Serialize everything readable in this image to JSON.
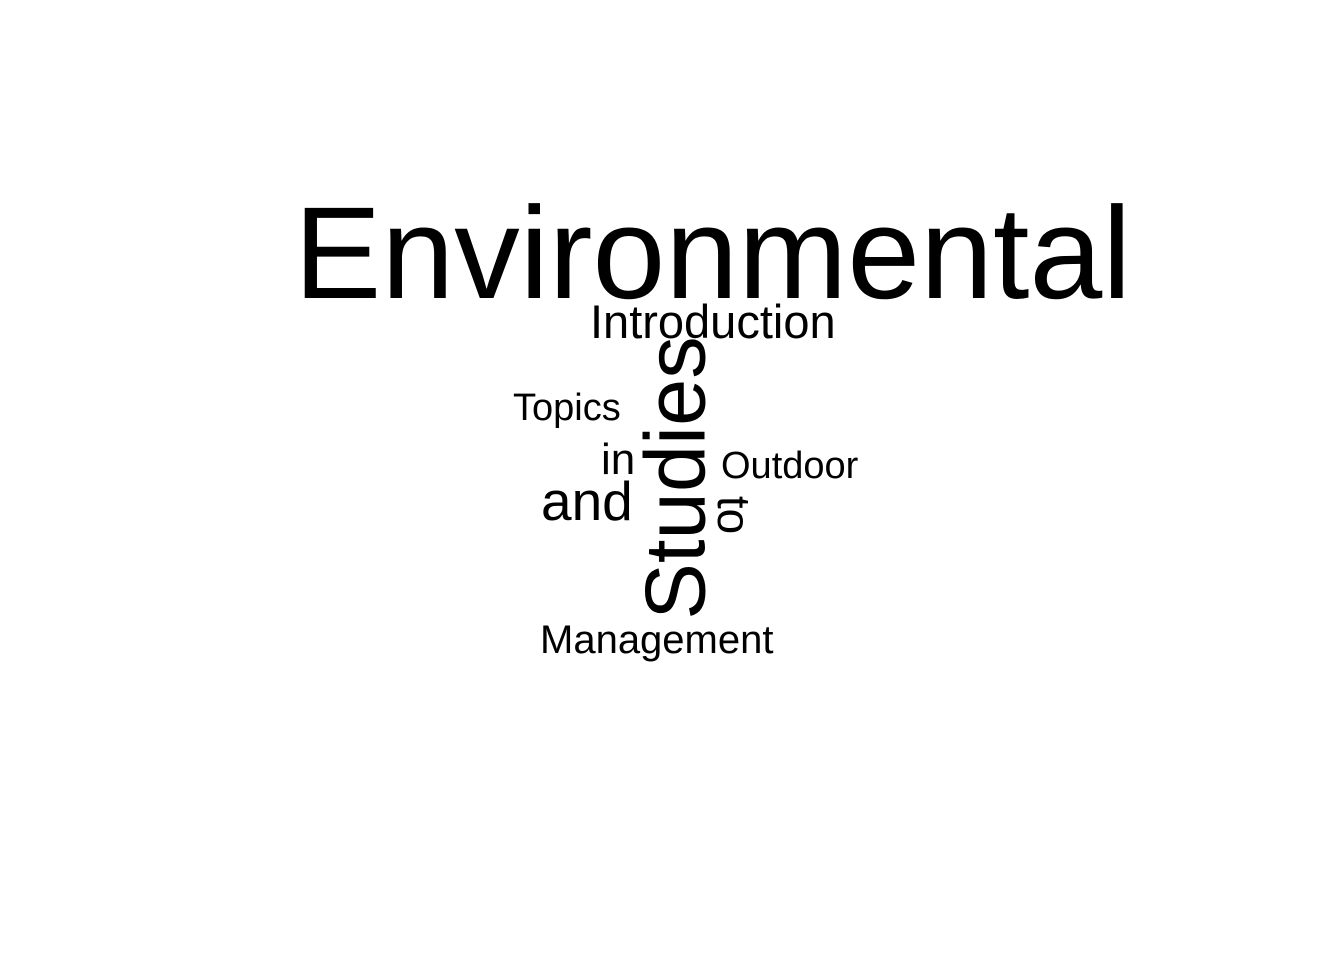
{
  "words": {
    "environmental": "Environmental",
    "introduction": "Introduction",
    "topics": "Topics",
    "in": "in",
    "and": "and",
    "studies": "Studies",
    "outdoor": "Outdoor",
    "to": "to",
    "management": "Management"
  },
  "colors": {
    "text": "#000000",
    "background": "#ffffff"
  }
}
